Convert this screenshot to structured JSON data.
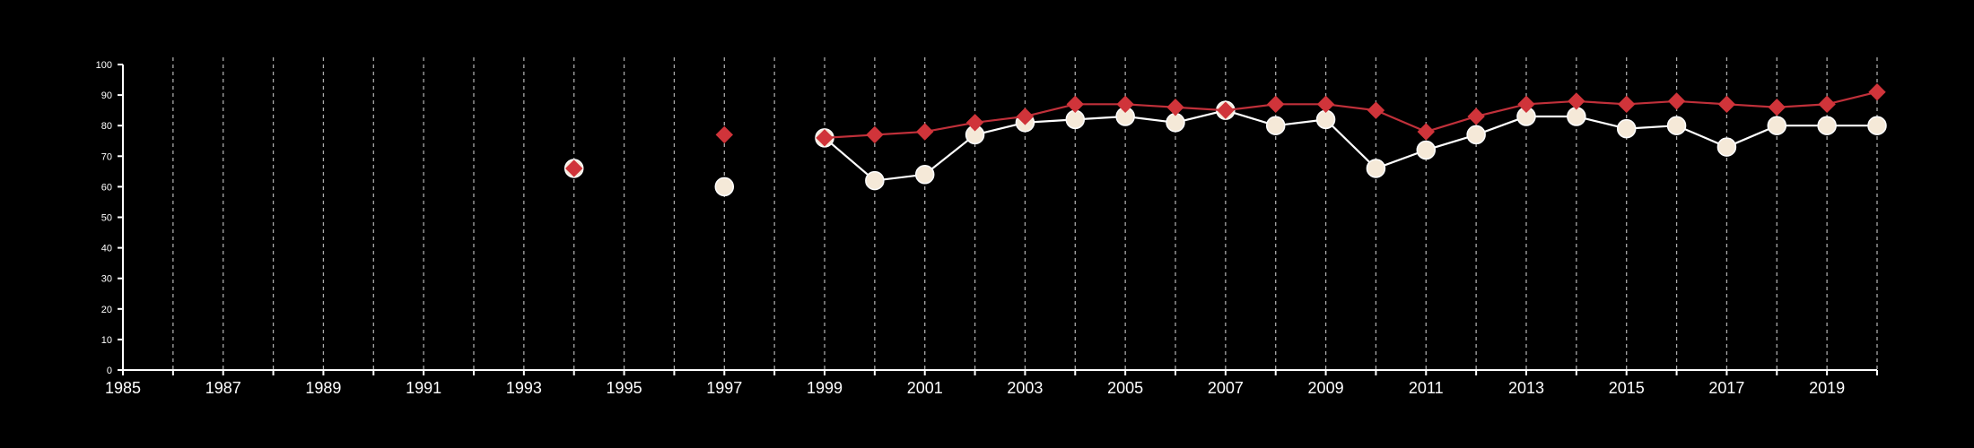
{
  "chart_data": {
    "type": "line",
    "title": "",
    "xlabel": "",
    "ylabel": "",
    "xlim": [
      1985,
      2020
    ],
    "ylim": [
      0,
      100
    ],
    "y_ticks": [
      "0",
      "10",
      "20",
      "30",
      "40",
      "50",
      "60",
      "70",
      "80",
      "90",
      "100"
    ],
    "x_tick_labels": [
      "1985",
      "1987",
      "1989",
      "1991",
      "1993",
      "1995",
      "1997",
      "1999",
      "2001",
      "2003",
      "2005",
      "2007",
      "2009",
      "2011",
      "2013",
      "2015",
      "2017",
      "2019"
    ],
    "grid": "vertical dashed gridlines at each year",
    "legend": "none",
    "series": [
      {
        "color": "#f5e9d8",
        "line_color": "#ffffff",
        "marker": "circle",
        "x": [
          1994,
          1997,
          1999,
          2000,
          2001,
          2002,
          2003,
          2004,
          2005,
          2006,
          2007,
          2008,
          2009,
          2010,
          2011,
          2012,
          2013,
          2014,
          2015,
          2016,
          2017,
          2018,
          2019,
          2020
        ],
        "values": [
          66,
          60,
          76,
          62,
          64,
          77,
          81,
          82,
          83,
          81,
          85,
          80,
          82,
          66,
          72,
          77,
          83,
          83,
          79,
          80,
          73,
          80,
          80,
          80
        ]
      },
      {
        "color": "#d0343a",
        "line_color": "#c0303a",
        "marker": "diamond",
        "x": [
          1994,
          1997,
          1999,
          2000,
          2001,
          2002,
          2003,
          2004,
          2005,
          2006,
          2007,
          2008,
          2009,
          2010,
          2011,
          2012,
          2013,
          2014,
          2015,
          2016,
          2017,
          2018,
          2019,
          2020
        ],
        "values": [
          66,
          77,
          76,
          77,
          78,
          81,
          83,
          87,
          87,
          86,
          85,
          87,
          87,
          85,
          78,
          83,
          87,
          88,
          87,
          88,
          87,
          86,
          87,
          91
        ]
      }
    ]
  }
}
